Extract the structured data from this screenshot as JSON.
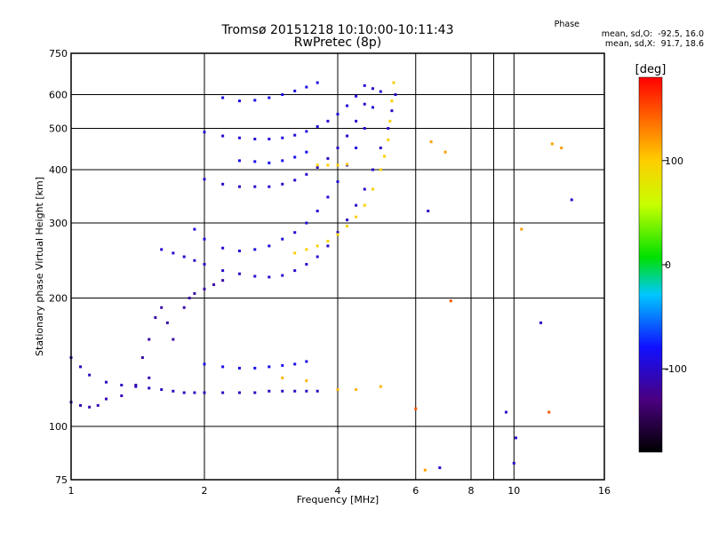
{
  "chart_data": {
    "type": "scatter",
    "title": "Tromsø 20151218 10:10:00-10:11:43",
    "subtitle": "RwPretec (8p)",
    "xlabel": "Frequency [MHz]",
    "ylabel": "Stationary phase Virtual Height [km]",
    "xscale": "log",
    "yscale": "log",
    "xlim": [
      1,
      16
    ],
    "ylim": [
      75,
      750
    ],
    "xticks": [
      1,
      2,
      4,
      6,
      8,
      10,
      16
    ],
    "xtick_labels": [
      "1",
      "2",
      "4",
      "6",
      "8",
      "10",
      "16"
    ],
    "xminor": [
      9
    ],
    "yticks": [
      75,
      100,
      200,
      300,
      400,
      500,
      600,
      750
    ],
    "ytick_labels": [
      "75",
      "100",
      "200",
      "300",
      "400",
      "500",
      "600",
      "750"
    ],
    "grid": true,
    "colorbar": {
      "label": "[deg]",
      "range": [
        -180,
        180
      ],
      "ticks": [
        100,
        0,
        -100
      ],
      "tick_labels": [
        "100",
        "0",
        "-100"
      ]
    },
    "stats": {
      "header": "Phase",
      "o_line": "mean, sd,O:  -92.5, 16.0",
      "x_line": "mean, sd,X:  91.7, 18.6"
    },
    "series": [
      {
        "phase": -105,
        "points": [
          [
            1.0,
            145
          ],
          [
            1.05,
            138
          ],
          [
            1.1,
            132
          ],
          [
            1.2,
            127
          ],
          [
            1.3,
            125
          ],
          [
            1.4,
            124
          ],
          [
            1.5,
            123
          ],
          [
            1.6,
            122
          ],
          [
            1.7,
            121
          ],
          [
            1.8,
            120
          ],
          [
            1.9,
            120
          ],
          [
            2.0,
            120
          ],
          [
            2.2,
            120
          ],
          [
            2.4,
            120
          ],
          [
            2.6,
            120
          ],
          [
            2.8,
            121
          ],
          [
            3.0,
            121
          ],
          [
            3.2,
            121
          ],
          [
            3.4,
            121
          ],
          [
            3.6,
            121
          ]
        ]
      },
      {
        "phase": -110,
        "points": [
          [
            1.0,
            114
          ],
          [
            1.05,
            112
          ],
          [
            1.1,
            111
          ],
          [
            1.15,
            112
          ],
          [
            1.2,
            116
          ],
          [
            1.3,
            118
          ],
          [
            1.4,
            125
          ],
          [
            1.5,
            130
          ]
        ]
      },
      {
        "phase": -115,
        "points": [
          [
            1.45,
            145
          ],
          [
            1.5,
            160
          ],
          [
            1.55,
            180
          ],
          [
            1.6,
            190
          ],
          [
            1.65,
            175
          ],
          [
            1.7,
            160
          ],
          [
            1.8,
            190
          ],
          [
            1.85,
            200
          ],
          [
            1.9,
            205
          ],
          [
            2.0,
            210
          ],
          [
            2.1,
            215
          ],
          [
            2.2,
            220
          ]
        ]
      },
      {
        "phase": -100,
        "points": [
          [
            1.6,
            260
          ],
          [
            1.7,
            255
          ],
          [
            1.8,
            250
          ],
          [
            1.9,
            245
          ],
          [
            2.0,
            240
          ],
          [
            2.2,
            232
          ],
          [
            2.4,
            228
          ],
          [
            2.6,
            225
          ],
          [
            2.8,
            224
          ],
          [
            3.0,
            226
          ],
          [
            3.2,
            232
          ],
          [
            3.4,
            240
          ],
          [
            3.6,
            250
          ],
          [
            3.8,
            265
          ],
          [
            4.0,
            285
          ],
          [
            4.2,
            305
          ],
          [
            4.4,
            330
          ],
          [
            4.6,
            360
          ],
          [
            4.8,
            400
          ],
          [
            5.0,
            450
          ],
          [
            5.2,
            500
          ],
          [
            5.3,
            550
          ],
          [
            5.4,
            600
          ]
        ]
      },
      {
        "phase": -95,
        "points": [
          [
            1.9,
            290
          ],
          [
            2.0,
            275
          ],
          [
            2.2,
            262
          ],
          [
            2.4,
            258
          ],
          [
            2.6,
            260
          ],
          [
            2.8,
            265
          ],
          [
            3.0,
            275
          ],
          [
            3.2,
            285
          ],
          [
            3.4,
            300
          ],
          [
            3.6,
            320
          ],
          [
            3.8,
            345
          ],
          [
            4.0,
            375
          ],
          [
            4.2,
            410
          ],
          [
            4.4,
            450
          ],
          [
            4.6,
            500
          ],
          [
            4.8,
            560
          ],
          [
            5.0,
            610
          ]
        ]
      },
      {
        "phase": -100,
        "points": [
          [
            2.0,
            380
          ],
          [
            2.2,
            370
          ],
          [
            2.4,
            365
          ],
          [
            2.6,
            365
          ],
          [
            2.8,
            365
          ],
          [
            3.0,
            370
          ],
          [
            3.2,
            378
          ],
          [
            3.4,
            390
          ],
          [
            3.6,
            405
          ],
          [
            3.8,
            425
          ],
          [
            4.0,
            450
          ],
          [
            4.2,
            480
          ],
          [
            4.4,
            520
          ],
          [
            4.6,
            570
          ],
          [
            4.8,
            620
          ]
        ]
      },
      {
        "phase": -95,
        "points": [
          [
            2.0,
            490
          ],
          [
            2.2,
            480
          ],
          [
            2.4,
            475
          ],
          [
            2.6,
            472
          ],
          [
            2.8,
            472
          ],
          [
            3.0,
            475
          ],
          [
            3.2,
            482
          ],
          [
            3.4,
            492
          ],
          [
            3.6,
            505
          ],
          [
            3.8,
            520
          ],
          [
            4.0,
            540
          ],
          [
            4.2,
            565
          ],
          [
            4.4,
            595
          ],
          [
            4.6,
            630
          ]
        ]
      },
      {
        "phase": -90,
        "points": [
          [
            2.2,
            590
          ],
          [
            2.4,
            580
          ],
          [
            2.6,
            582
          ],
          [
            2.8,
            590
          ],
          [
            3.0,
            600
          ],
          [
            3.2,
            612
          ],
          [
            3.4,
            625
          ],
          [
            3.6,
            640
          ]
        ]
      },
      {
        "phase": -85,
        "points": [
          [
            2.4,
            420
          ],
          [
            2.6,
            418
          ],
          [
            2.8,
            415
          ],
          [
            3.0,
            420
          ],
          [
            3.2,
            428
          ],
          [
            3.4,
            440
          ]
        ]
      },
      {
        "phase": -88,
        "points": [
          [
            2.0,
            140
          ],
          [
            2.2,
            138
          ],
          [
            2.4,
            137
          ],
          [
            2.6,
            137
          ],
          [
            2.8,
            138
          ],
          [
            3.0,
            139
          ],
          [
            3.2,
            140
          ],
          [
            3.4,
            142
          ]
        ]
      },
      {
        "phase": 95,
        "points": [
          [
            3.2,
            255
          ],
          [
            3.4,
            260
          ],
          [
            3.6,
            265
          ],
          [
            3.8,
            272
          ],
          [
            4.0,
            282
          ],
          [
            4.2,
            295
          ],
          [
            4.4,
            310
          ],
          [
            4.6,
            330
          ],
          [
            4.8,
            360
          ],
          [
            5.0,
            400
          ],
          [
            5.1,
            430
          ],
          [
            5.2,
            470
          ],
          [
            5.25,
            520
          ],
          [
            5.3,
            580
          ],
          [
            5.35,
            640
          ]
        ]
      },
      {
        "phase": 100,
        "points": [
          [
            3.6,
            410
          ],
          [
            3.8,
            410
          ],
          [
            4.0,
            410
          ],
          [
            4.2,
            412
          ]
        ]
      },
      {
        "phase": 110,
        "points": [
          [
            3.0,
            130
          ],
          [
            3.4,
            128
          ],
          [
            4.0,
            122
          ],
          [
            4.4,
            122
          ],
          [
            5.0,
            124
          ]
        ]
      },
      {
        "phase": 120,
        "points": [
          [
            6.5,
            465
          ],
          [
            7.0,
            440
          ],
          [
            6.3,
            79
          ],
          [
            12.2,
            460
          ],
          [
            12.8,
            450
          ],
          [
            10.4,
            290
          ]
        ]
      },
      {
        "phase": 150,
        "points": [
          [
            12.0,
            108
          ],
          [
            7.2,
            197
          ],
          [
            6.0,
            110
          ]
        ]
      },
      {
        "phase": -100,
        "points": [
          [
            9.6,
            108
          ],
          [
            10.0,
            82
          ],
          [
            10.1,
            94
          ],
          [
            13.5,
            340
          ],
          [
            6.8,
            80
          ],
          [
            11.5,
            175
          ],
          [
            6.4,
            320
          ]
        ]
      }
    ]
  }
}
